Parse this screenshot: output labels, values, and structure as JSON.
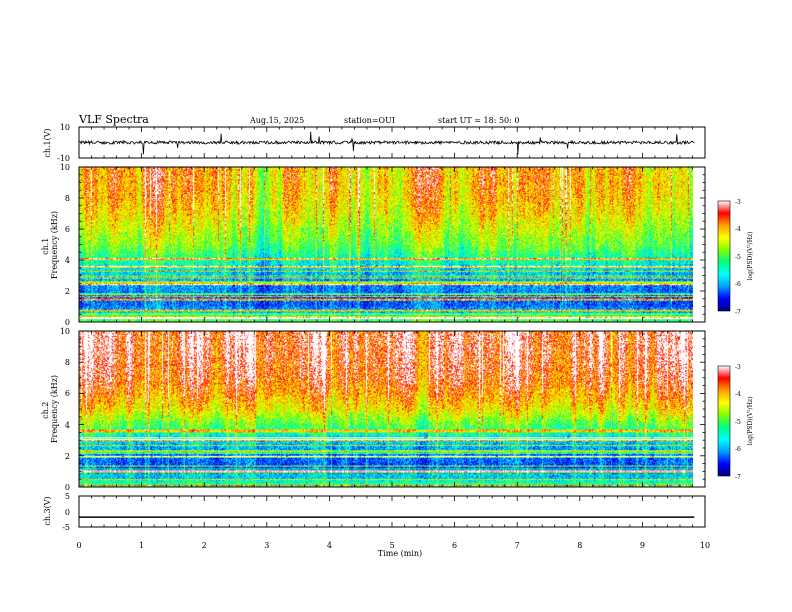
{
  "header": {
    "title": "VLF Spectra",
    "date": "Aug.15, 2025",
    "station": "station=OUI",
    "start": "start  UT =   18: 50: 0"
  },
  "panels": {
    "ch1_wave": {
      "ylabel": "ch.1(V)",
      "ticks": [
        "10",
        "-10"
      ]
    },
    "ch1_spec": {
      "ylabel": "ch.1\nFrequency (kHz)",
      "ticks": [
        "0",
        "2",
        "4",
        "6",
        "8",
        "10"
      ]
    },
    "ch2_spec": {
      "ylabel": "ch.2\nFrequency (kHz)",
      "ticks": [
        "0",
        "2",
        "4",
        "6",
        "8",
        "10"
      ]
    },
    "ch3_wave": {
      "ylabel": "ch.3(V)",
      "ticks": [
        "5",
        "0",
        "-5"
      ]
    }
  },
  "xaxis": {
    "label": "Time (min)",
    "ticks": [
      "0",
      "1",
      "2",
      "3",
      "4",
      "5",
      "6",
      "7",
      "8",
      "9",
      "10"
    ]
  },
  "colorbar": {
    "label": "log(PSD)(V²/Hz)",
    "ticks": [
      "-3",
      "-4",
      "-5",
      "-6",
      "-7"
    ],
    "colors": [
      "#000080",
      "#0000ff",
      "#00a0ff",
      "#00ffff",
      "#00ff80",
      "#80ff00",
      "#ffff00",
      "#ffa000",
      "#ff0000",
      "#ffffff"
    ]
  },
  "chart_data": [
    {
      "type": "line",
      "name": "ch.1 waveform",
      "ylabel": "ch.1(V)",
      "xlim": [
        0,
        10
      ],
      "ylim": [
        -10,
        10
      ],
      "x_end": 9.83,
      "baseline": 0,
      "amplitude": 2
    },
    {
      "type": "heatmap",
      "name": "ch.1 spectrogram",
      "ylabel": "Frequency (kHz)",
      "xlim": [
        0,
        10
      ],
      "ylim": [
        0,
        10
      ],
      "x_end": 9.83,
      "zlim": [
        -7,
        -3
      ],
      "profile_freq_khz": [
        0,
        1,
        2,
        3,
        4,
        5,
        6,
        7,
        8,
        9,
        10
      ],
      "profile_logpsd": [
        -4.8,
        -6.1,
        -6.0,
        -5.7,
        -5.2,
        -4.7,
        -4.4,
        -4.1,
        -3.9,
        -3.8,
        -3.8
      ]
    },
    {
      "type": "heatmap",
      "name": "ch.2 spectrogram",
      "ylabel": "Frequency (kHz)",
      "xlim": [
        0,
        10
      ],
      "ylim": [
        0,
        10
      ],
      "x_end": 9.83,
      "zlim": [
        -7,
        -3
      ],
      "profile_freq_khz": [
        0,
        1,
        2,
        3,
        4,
        5,
        6,
        7,
        8,
        9,
        10
      ],
      "profile_logpsd": [
        -4.9,
        -6.2,
        -6.1,
        -5.5,
        -4.8,
        -4.1,
        -3.7,
        -3.4,
        -3.3,
        -3.2,
        -3.2
      ]
    },
    {
      "type": "line",
      "name": "ch.3 waveform",
      "ylabel": "ch.3(V)",
      "xlim": [
        0,
        10
      ],
      "ylim": [
        -5,
        5
      ],
      "x_end": 9.83,
      "baseline": -1.8,
      "amplitude": 0
    }
  ]
}
